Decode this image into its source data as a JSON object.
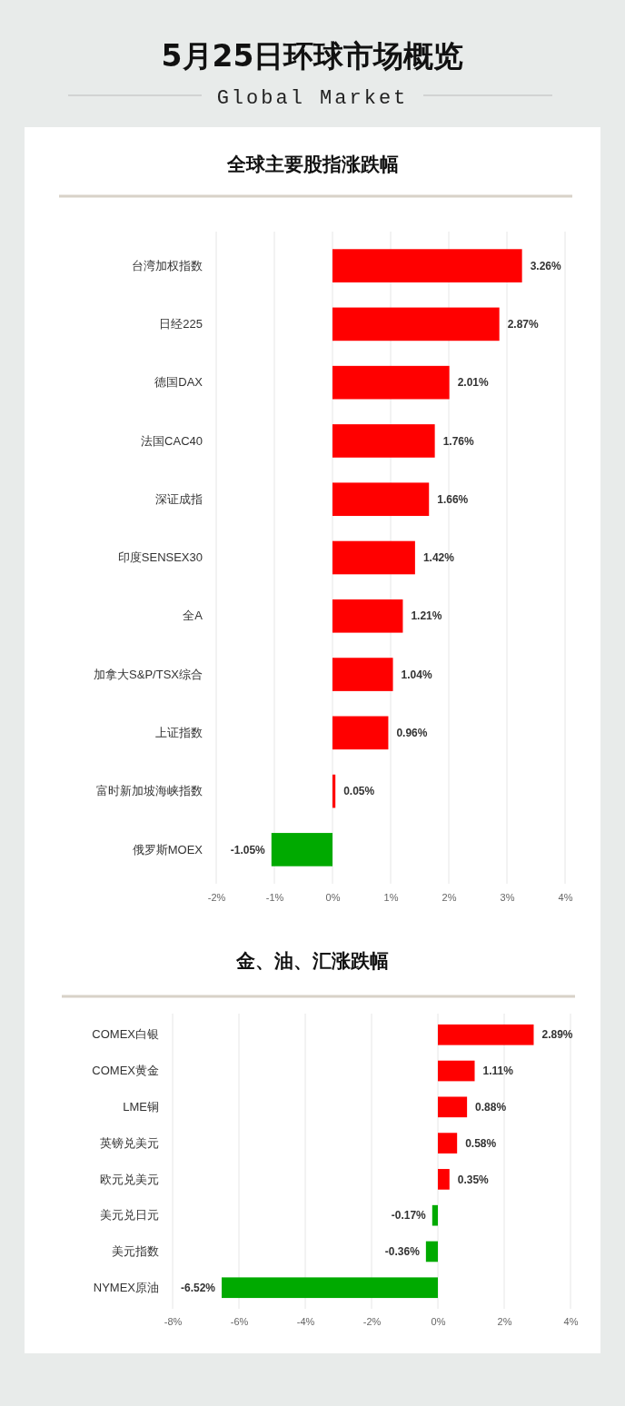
{
  "chart_data": [
    {
      "type": "bar",
      "orientation": "horizontal",
      "title": "全球主要股指涨跌幅",
      "annotations": [
        "5月25日环球市场概览",
        "Global Market"
      ],
      "categories": [
        "台湾加权指数",
        "日经225",
        "德国DAX",
        "法国CAC40",
        "深证成指",
        "印度SENSEX30",
        "全A",
        "加拿大S&P/TSX综合",
        "上证指数",
        "富时新加坡海峡指数",
        "俄罗斯MOEX"
      ],
      "values": [
        3.26,
        2.87,
        2.01,
        1.76,
        1.66,
        1.42,
        1.21,
        1.04,
        0.96,
        0.05,
        -1.05
      ],
      "value_labels": [
        "3.26%",
        "2.87%",
        "2.01%",
        "1.76%",
        "1.66%",
        "1.42%",
        "1.21%",
        "1.04%",
        "0.96%",
        "0.05%",
        "-1.05%"
      ],
      "colors": [
        "#ff0000",
        "#ff0000",
        "#ff0000",
        "#ff0000",
        "#ff0000",
        "#ff0000",
        "#ff0000",
        "#ff0000",
        "#ff0000",
        "#ff0000",
        "#00aa00"
      ],
      "xlim": [
        -2,
        4
      ],
      "xticks": [
        {
          "value": -2,
          "label": "-2%"
        },
        {
          "value": -1,
          "label": "-1%"
        },
        {
          "value": 0,
          "label": "0%"
        },
        {
          "value": 1,
          "label": "1%"
        },
        {
          "value": 2,
          "label": "2%"
        },
        {
          "value": 3,
          "label": "3%"
        },
        {
          "value": 4,
          "label": "4%"
        }
      ],
      "grid": "x"
    },
    {
      "type": "bar",
      "orientation": "horizontal",
      "title": "金、油、汇涨跌幅",
      "categories": [
        "COMEX白银",
        "COMEX黄金",
        "LME铜",
        "英镑兑美元",
        "欧元兑美元",
        "美元兑日元",
        "美元指数",
        "NYMEX原油"
      ],
      "values": [
        2.89,
        1.11,
        0.88,
        0.58,
        0.35,
        -0.17,
        -0.36,
        -6.52
      ],
      "value_labels": [
        "2.89%",
        "1.11%",
        "0.88%",
        "0.58%",
        "0.35%",
        "-0.17%",
        "-0.36%",
        "-6.52%"
      ],
      "colors": [
        "#ff0000",
        "#ff0000",
        "#ff0000",
        "#ff0000",
        "#ff0000",
        "#00aa00",
        "#00aa00",
        "#00aa00"
      ],
      "xlim": [
        -8,
        4
      ],
      "xticks": [
        {
          "value": -8,
          "label": "-8%"
        },
        {
          "value": -6,
          "label": "-6%"
        },
        {
          "value": -4,
          "label": "-4%"
        },
        {
          "value": -2,
          "label": "-2%"
        },
        {
          "value": 0,
          "label": "0%"
        },
        {
          "value": 2,
          "label": "2%"
        },
        {
          "value": 4,
          "label": "4%"
        }
      ],
      "grid": "x"
    }
  ]
}
